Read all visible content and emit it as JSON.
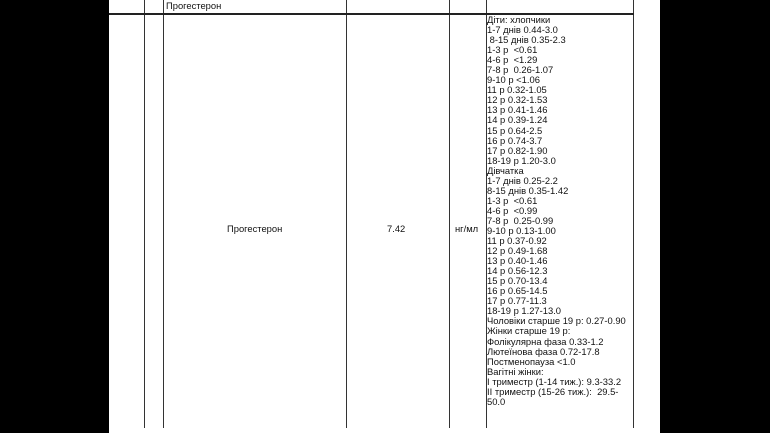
{
  "header_row": {
    "name": "Прогестерон"
  },
  "row": {
    "name": "Прогестерон",
    "value": "7.42",
    "unit": "нг/мл",
    "reference": [
      "Діти: хлопчики",
      "1-7 днів 0.44-3.0",
      " 8-15 днів 0.35-2.3",
      "1-3 р  <0.61",
      "4-6 р  <1.29",
      "7-8 р  0.26-1.07",
      "9-10 р <1.06",
      "11 р 0.32-1.05",
      "12 р 0.32-1.53",
      "13 р 0.41-1.46",
      "14 р 0.39-1.24",
      "15 р 0.64-2.5",
      "16 р 0.74-3.7",
      "17 р 0.82-1.90",
      "18-19 р 1.20-3.0",
      "Дівчатка",
      "1-7 днів 0.25-2.2",
      "8-15 днів 0.35-1.42",
      "1-3 р  <0.61",
      "4-6 р  <0.99",
      "7-8 р  0.25-0.99",
      "9-10 р 0.13-1.00",
      "11 р 0.37-0.92",
      "12 р 0.49-1.68",
      "13 р 0.40-1.46",
      "14 р 0.56-12.3",
      "15 р 0.70-13.4",
      "16 р 0.65-14.5",
      "17 р 0.77-11.3",
      "18-19 р 1.27-13.0",
      "Чоловіки старше 19 р: 0.27-0.90",
      "Жінки старше 19 р:",
      "Фолікулярна фаза 0.33-1.2",
      "Лютеїнова фаза 0.72-17.8",
      "Постменопауза <1.0",
      "Вагітні жінки:",
      "І триместр (1-14 тиж.): 9.3-33.2",
      "ІІ триместр (15-26 тиж.):  29.5-",
      "50.0"
    ]
  }
}
